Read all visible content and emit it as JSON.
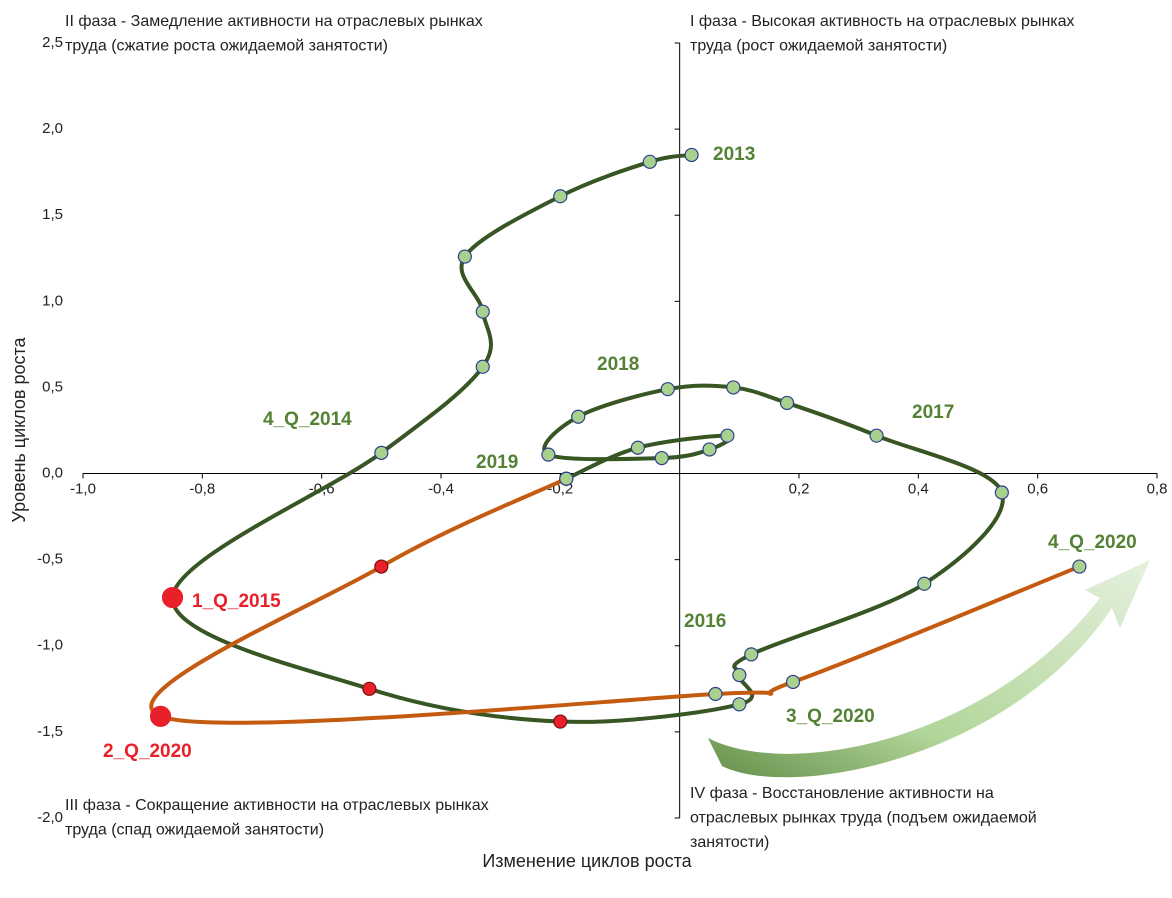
{
  "chart_data": {
    "type": "scatter",
    "x_label": "Изменение циклов роста",
    "y_label": "Уровень циклов роста",
    "xlim": [
      -1.0,
      0.8
    ],
    "ylim": [
      -2.0,
      2.5
    ],
    "xticks": [
      {
        "value": -1.0,
        "label": "-1,0"
      },
      {
        "value": -0.8,
        "label": "-0,8"
      },
      {
        "value": -0.6,
        "label": "-0,6"
      },
      {
        "value": -0.4,
        "label": "-0,4"
      },
      {
        "value": -0.2,
        "label": "-0,2"
      },
      {
        "value": 0.2,
        "label": "0,2"
      },
      {
        "value": 0.4,
        "label": "0,4"
      },
      {
        "value": 0.6,
        "label": "0,6"
      },
      {
        "value": 0.8,
        "label": "0,8"
      }
    ],
    "yticks": [
      {
        "value": -2.0,
        "label": "-2,0"
      },
      {
        "value": -1.5,
        "label": "-1,5"
      },
      {
        "value": -1.0,
        "label": "-1,0"
      },
      {
        "value": -0.5,
        "label": "-0,5"
      },
      {
        "value": 0.0,
        "label": "0,0"
      },
      {
        "value": 0.5,
        "label": "0,5"
      },
      {
        "value": 1.0,
        "label": "1,0"
      },
      {
        "value": 1.5,
        "label": "1,5"
      },
      {
        "value": 2.0,
        "label": "2,0"
      },
      {
        "value": 2.5,
        "label": "2,5"
      }
    ],
    "series": [
      {
        "color": "#375623",
        "x": [
          0.02,
          -0.05,
          -0.2,
          -0.36,
          -0.33,
          -0.33,
          -0.5,
          -0.85,
          -0.52,
          -0.2,
          0.1,
          0.1,
          0.12,
          0.41,
          0.54,
          0.33,
          0.18,
          0.09,
          -0.02,
          -0.17,
          -0.22,
          -0.03,
          0.05,
          0.08,
          -0.07,
          -0.19
        ],
        "values": [
          1.85,
          1.81,
          1.61,
          1.26,
          0.94,
          0.62,
          0.12,
          -0.72,
          -1.25,
          -1.44,
          -1.34,
          -1.17,
          -1.05,
          -0.64,
          -0.11,
          0.22,
          0.41,
          0.5,
          0.49,
          0.33,
          0.11,
          0.09,
          0.14,
          0.22,
          0.15,
          -0.03
        ],
        "point_colors": [
          "#a9d18e",
          "#a9d18e",
          "#a9d18e",
          "#a9d18e",
          "#a9d18e",
          "#a9d18e",
          "#a9d18e",
          "#e8202a",
          "#e8202a",
          "#e8202a",
          "#a9d18e",
          "#a9d18e",
          "#a9d18e",
          "#a9d18e",
          "#a9d18e",
          "#a9d18e",
          "#a9d18e",
          "#a9d18e",
          "#a9d18e",
          "#a9d18e",
          "#a9d18e",
          "#a9d18e",
          "#a9d18e",
          "#a9d18e",
          "#a9d18e",
          "#a9d18e"
        ],
        "highlight": [
          7
        ]
      },
      {
        "color": "#c55a11",
        "x": [
          -0.19,
          -0.5,
          -0.87,
          0.06,
          0.19,
          0.67
        ],
        "values": [
          -0.03,
          -0.54,
          -1.41,
          -1.28,
          -1.21,
          -0.54
        ],
        "point_colors": [
          "#a9d18e",
          "#e8202a",
          "#e8202a",
          "#a9d18e",
          "#a9d18e",
          "#a9d18e"
        ],
        "highlight": [
          2
        ]
      }
    ],
    "annotations": [
      {
        "text": "2013",
        "color": "#548235"
      },
      {
        "text": "2018",
        "color": "#548235"
      },
      {
        "text": "2017",
        "color": "#548235"
      },
      {
        "text": "4_Q_2014",
        "color": "#548235"
      },
      {
        "text": "2019",
        "color": "#548235"
      },
      {
        "text": "1_Q_2015",
        "color": "#e8202a"
      },
      {
        "text": "2016",
        "color": "#548235"
      },
      {
        "text": "4_Q_2020",
        "color": "#548235"
      },
      {
        "text": "3_Q_2020",
        "color": "#548235"
      },
      {
        "text": "2_Q_2020",
        "color": "#e8202a"
      }
    ],
    "phases": [
      [
        "II  фаза - Замедление активности на отраслевых рынках",
        "труда (сжатие роста ожидаемой занятости)"
      ],
      [
        "I фаза - Высокая активность на отраслевых  рынках",
        "труда (рост ожидаемой занятости)"
      ],
      [
        "III фаза - Сокращение  активности на отраслевых рынках",
        "труда (спад ожидаемой занятости)"
      ],
      [
        "IV фаза - Восстановление активности на",
        "отраслевых рынках труда (подъем ожидаемой",
        "занятости)"
      ]
    ]
  }
}
